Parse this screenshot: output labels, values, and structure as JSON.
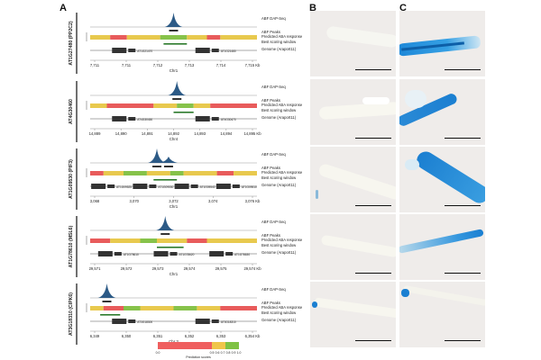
{
  "panels": {
    "a": "A",
    "b": "B",
    "c": "C"
  },
  "track_labels": [
    "ABF DAP-Seq",
    "ABF Peaks",
    "Predicted ABA response",
    "Best scoring window",
    "Genome (Araport11)"
  ],
  "rows": [
    {
      "gene": "AT1G27480 (PP2C2)",
      "genes_text": [
        "AT1G21470",
        "AT1G21480"
      ],
      "ticks": [
        "7,711",
        "7,711",
        "7,712",
        "7,713",
        "7,714",
        "7,715 Kb"
      ],
      "chr": "Chr1"
    },
    {
      "gene": "AT4G30460",
      "genes_text": [
        "AT4G30450",
        "AT4G30470"
      ],
      "ticks": [
        "14,889",
        "14,890",
        "14,891",
        "14,892",
        "14,893",
        "14,894",
        "14,895 Kb"
      ],
      "chr": "Chr4"
    },
    {
      "gene": "AT1G09530 (PIF3)",
      "genes_text": [
        "AT1G09525",
        "AT1G09530",
        "AT1G09540",
        "AT1G09510"
      ],
      "ticks": [
        "3,068",
        "3,070",
        "3,072",
        "3,074",
        "3,076 Kb"
      ],
      "chr": "Chr1"
    },
    {
      "gene": "AT1G78610 (MSL6)",
      "genes_text": [
        "AT1G78610",
        "AT1G78620",
        "AT1G78630"
      ],
      "ticks": [
        "29,571",
        "29,572",
        "29,573",
        "29,574",
        "29,575",
        "29,574 Kb"
      ],
      "chr": "Chr1"
    },
    {
      "gene": "AT3G18310 (CIPK6)",
      "genes_text": [
        "AT3G18300",
        "AT3G18310"
      ],
      "ticks": [
        "6,349",
        "6,350",
        "6,351",
        "6,352",
        "6,353",
        "6,354 Kb"
      ],
      "chr": "Chr 3"
    }
  ],
  "colorbar": {
    "ticks": [
      "0.0",
      "0.5",
      "0.6",
      "0.7",
      "0.8",
      "0.9",
      "1.0"
    ],
    "label": "Prediction scores",
    "colors": {
      "low": "#ef5f5f",
      "mid": "#f0c64a",
      "high": "#7fc244"
    }
  },
  "colors": {
    "peak": "#2c5a86",
    "bar_red": "#e85b5b",
    "bar_yellow": "#e8c94e",
    "bar_green": "#86c24a",
    "stain": "#1b7fd1"
  }
}
